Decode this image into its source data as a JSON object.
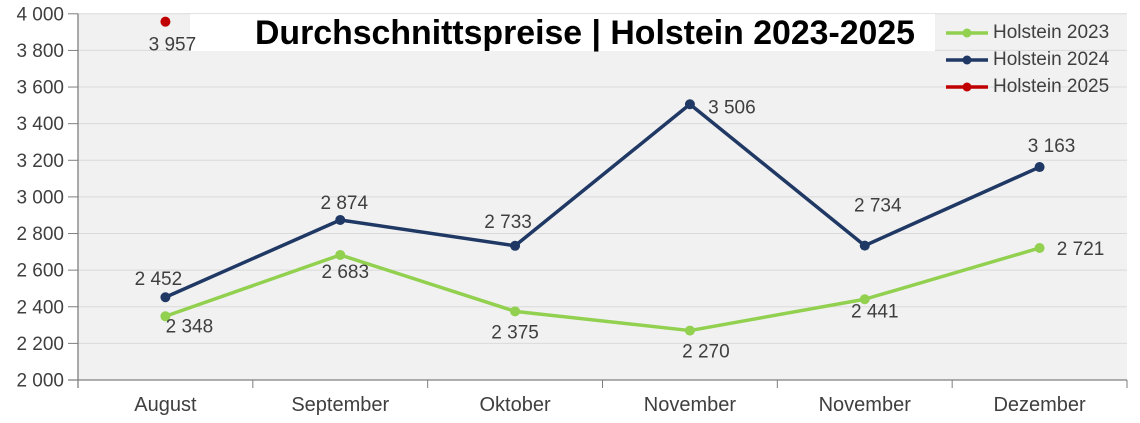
{
  "colors": {
    "page_bg": "#ffffff",
    "plot_bg": "#f1f1f1",
    "gridline": "#dadada",
    "axis": "#7f7f7f",
    "label_text": "#3f3f3f",
    "title_text": "#000000",
    "title_band": "#ffffff"
  },
  "chart_data": {
    "type": "line",
    "title": "Durchschnittspreise | Holstein 2023-2025",
    "categories": [
      "August",
      "September",
      "Oktober",
      "November",
      "November",
      "Dezember"
    ],
    "series": [
      {
        "name": "Holstein 2023",
        "color": "#92d050",
        "values": [
          2348,
          2683,
          2375,
          2270,
          2441,
          2721
        ],
        "labels": [
          "2 348",
          "2 683",
          "2 375",
          "2 270",
          "2 441",
          "2 721"
        ]
      },
      {
        "name": "Holstein 2024",
        "color": "#1f3864",
        "values": [
          2452,
          2874,
          2733,
          3506,
          2734,
          3163
        ],
        "labels": [
          "2 452",
          "2 874",
          "2 733",
          "3 506",
          "2 734",
          "3 163"
        ]
      },
      {
        "name": "Holstein 2025",
        "color": "#c00000",
        "values": [
          3957,
          null,
          null,
          null,
          null,
          null
        ],
        "labels": [
          "3 957",
          null,
          null,
          null,
          null,
          null
        ]
      }
    ],
    "ylim": [
      2000,
      4000
    ],
    "ytick_step": 200,
    "ytick_labels": [
      "2 000",
      "2 200",
      "2 400",
      "2 600",
      "2 800",
      "3 000",
      "3 200",
      "3 400",
      "3 600",
      "3 800",
      "4 000"
    ],
    "xlabel": "",
    "ylabel": "",
    "grid": "horizontal",
    "legend_position": "top-right",
    "data_labels_shown": true
  }
}
